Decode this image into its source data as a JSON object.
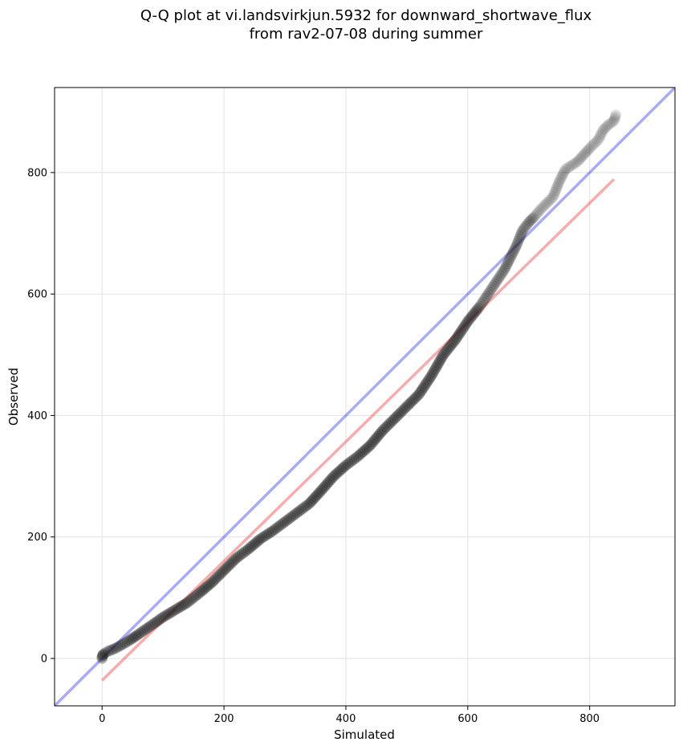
{
  "chart_data": {
    "type": "scatter",
    "title": [
      "Q-Q plot at vi.landsvirkjun.5932 for downward_shortwave_flux",
      "from rav2-07-08 during summer"
    ],
    "xlabel": "Simulated",
    "ylabel": "Observed",
    "xlim": [
      -78,
      940
    ],
    "ylim": [
      -78,
      940
    ],
    "xticks": [
      0,
      200,
      400,
      600,
      800
    ],
    "yticks": [
      0,
      200,
      400,
      600,
      800
    ],
    "grid": true,
    "colors": {
      "points": "#1a1a1a",
      "identity_line": "#0000dd",
      "regression_line": "#ee3333"
    },
    "series": [
      {
        "name": "",
        "kind": "scatter",
        "points": [
          [
            0,
            0
          ],
          [
            0,
            3
          ],
          [
            1,
            5
          ],
          [
            2,
            7
          ],
          [
            5,
            9
          ],
          [
            10,
            12
          ],
          [
            18,
            15
          ],
          [
            30,
            21
          ],
          [
            45,
            30
          ],
          [
            60,
            40
          ],
          [
            80,
            54
          ],
          [
            100,
            68
          ],
          [
            120,
            80
          ],
          [
            140,
            92
          ],
          [
            160,
            108
          ],
          [
            180,
            125
          ],
          [
            200,
            145
          ],
          [
            220,
            165
          ],
          [
            240,
            180
          ],
          [
            260,
            197
          ],
          [
            280,
            210
          ],
          [
            300,
            225
          ],
          [
            320,
            240
          ],
          [
            340,
            255
          ],
          [
            360,
            277
          ],
          [
            380,
            300
          ],
          [
            400,
            318
          ],
          [
            420,
            333
          ],
          [
            440,
            351
          ],
          [
            460,
            375
          ],
          [
            480,
            395
          ],
          [
            500,
            415
          ],
          [
            520,
            435
          ],
          [
            540,
            465
          ],
          [
            560,
            500
          ],
          [
            580,
            525
          ],
          [
            600,
            555
          ],
          [
            620,
            580
          ],
          [
            640,
            610
          ],
          [
            660,
            640
          ],
          [
            670,
            660
          ],
          [
            680,
            680
          ],
          [
            690,
            705
          ],
          [
            700,
            718
          ],
          [
            710,
            728
          ],
          [
            720,
            740
          ],
          [
            740,
            760
          ],
          [
            750,
            785
          ],
          [
            760,
            805
          ],
          [
            780,
            818
          ],
          [
            800,
            840
          ],
          [
            815,
            855
          ],
          [
            822,
            870
          ],
          [
            830,
            878
          ],
          [
            840,
            885
          ],
          [
            843,
            895
          ]
        ]
      },
      {
        "name": "",
        "kind": "line",
        "role": "identity",
        "points": [
          [
            -78,
            -78
          ],
          [
            940,
            940
          ]
        ]
      },
      {
        "name": "",
        "kind": "line",
        "role": "regression",
        "points": [
          [
            0,
            -36
          ],
          [
            840,
            789
          ]
        ]
      }
    ]
  }
}
